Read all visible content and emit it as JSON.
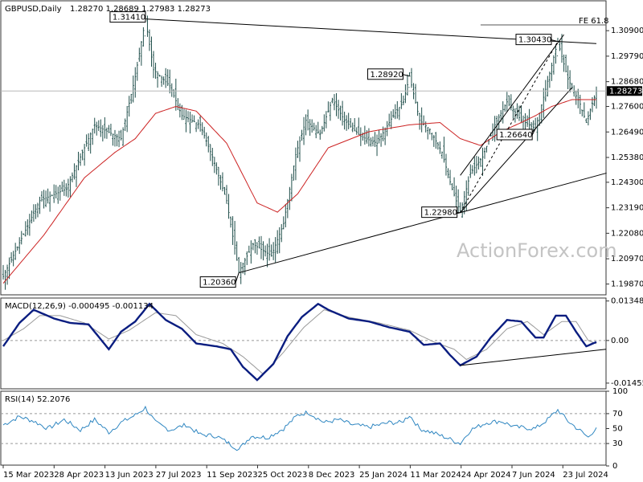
{
  "chart_data": [
    {
      "type": "candlestick",
      "title": "GBPUSD,Daily",
      "ohlc_readout": "1.28270 1.28689 1.27983 1.28273",
      "last_price": "1.28273",
      "ylim": [
        1.194,
        1.322
      ],
      "y_ticks": [
        "1.30900",
        "1.29790",
        "1.28680",
        "1.27600",
        "1.26490",
        "1.25380",
        "1.24300",
        "1.23190",
        "1.22080",
        "1.20970",
        "1.19870"
      ],
      "x_ticks": [
        "15 Mar 2023",
        "28 Apr 2023",
        "13 Jun 2023",
        "27 Jul 2023",
        "11 Sep 2023",
        "25 Oct 2023",
        "8 Dec 2023",
        "25 Jan 2024",
        "11 Mar 2024",
        "24 Apr 2024",
        "7 Jun 2024",
        "23 Jul 2024"
      ],
      "price_keypoints": [
        [
          0,
          1.202
        ],
        [
          18,
          1.235
        ],
        [
          31,
          1.24
        ],
        [
          45,
          1.268
        ],
        [
          58,
          1.262
        ],
        [
          65,
          1.289
        ],
        [
          70,
          1.3141
        ],
        [
          74,
          1.292
        ],
        [
          82,
          1.285
        ],
        [
          88,
          1.272
        ],
        [
          97,
          1.268
        ],
        [
          103,
          1.254
        ],
        [
          110,
          1.235
        ],
        [
          116,
          1.204
        ],
        [
          123,
          1.216
        ],
        [
          132,
          1.211
        ],
        [
          138,
          1.225
        ],
        [
          144,
          1.255
        ],
        [
          149,
          1.27
        ],
        [
          156,
          1.264
        ],
        [
          162,
          1.279
        ],
        [
          168,
          1.27
        ],
        [
          176,
          1.263
        ],
        [
          184,
          1.26
        ],
        [
          192,
          1.272
        ],
        [
          197,
          1.278
        ],
        [
          200,
          1.2892
        ],
        [
          205,
          1.27
        ],
        [
          210,
          1.266
        ],
        [
          216,
          1.256
        ],
        [
          221,
          1.24
        ],
        [
          225,
          1.2298
        ],
        [
          230,
          1.247
        ],
        [
          236,
          1.254
        ],
        [
          242,
          1.268
        ],
        [
          248,
          1.278
        ],
        [
          255,
          1.27
        ],
        [
          262,
          1.2664
        ],
        [
          266,
          1.28
        ],
        [
          273,
          1.3043
        ],
        [
          278,
          1.288
        ],
        [
          284,
          1.277
        ],
        [
          287,
          1.269
        ],
        [
          292,
          1.2827
        ]
      ],
      "moving_average_keypoints": [
        [
          0,
          1.199
        ],
        [
          20,
          1.22
        ],
        [
          40,
          1.245
        ],
        [
          55,
          1.256
        ],
        [
          65,
          1.262
        ],
        [
          75,
          1.273
        ],
        [
          85,
          1.276
        ],
        [
          95,
          1.274
        ],
        [
          110,
          1.26
        ],
        [
          125,
          1.234
        ],
        [
          135,
          1.23
        ],
        [
          145,
          1.238
        ],
        [
          160,
          1.258
        ],
        [
          180,
          1.265
        ],
        [
          200,
          1.268
        ],
        [
          215,
          1.269
        ],
        [
          225,
          1.262
        ],
        [
          235,
          1.259
        ],
        [
          245,
          1.265
        ],
        [
          255,
          1.269
        ],
        [
          262,
          1.272
        ],
        [
          270,
          1.276
        ],
        [
          280,
          1.279
        ],
        [
          292,
          1.279
        ]
      ],
      "annotations": [
        {
          "label": "1.31410",
          "bar": 70,
          "price": 1.3141
        },
        {
          "label": "1.20360",
          "bar": 116,
          "price": 1.2036
        },
        {
          "label": "1.28920",
          "bar": 200,
          "price": 1.2892
        },
        {
          "label": "1.22980",
          "bar": 225,
          "price": 1.2298
        },
        {
          "label": "1.30430",
          "bar": 273,
          "price": 1.3043
        },
        {
          "label": "1.26640",
          "bar": 262,
          "price": 1.2664
        }
      ],
      "fib_label": "FE 61.8",
      "fib_price": 1.3115
    },
    {
      "type": "line",
      "title": "MACD(12,26,9) -0.000495 -0.001134",
      "ylim": [
        -0.0165,
        0.0145
      ],
      "y_ticks": [
        "0.013489",
        "0.00",
        "-0.014554"
      ],
      "macd_keypoints": [
        [
          0,
          -0.002
        ],
        [
          8,
          0.006
        ],
        [
          15,
          0.0105
        ],
        [
          25,
          0.0075
        ],
        [
          33,
          0.006
        ],
        [
          42,
          0.0055
        ],
        [
          52,
          -0.003
        ],
        [
          58,
          0.003
        ],
        [
          65,
          0.0065
        ],
        [
          72,
          0.0125
        ],
        [
          80,
          0.007
        ],
        [
          88,
          0.004
        ],
        [
          95,
          -0.001
        ],
        [
          105,
          -0.002
        ],
        [
          112,
          -0.003
        ],
        [
          118,
          -0.009
        ],
        [
          125,
          -0.0135
        ],
        [
          133,
          -0.008
        ],
        [
          140,
          0.0015
        ],
        [
          147,
          0.008
        ],
        [
          155,
          0.0125
        ],
        [
          160,
          0.0105
        ],
        [
          170,
          0.0075
        ],
        [
          180,
          0.0065
        ],
        [
          190,
          0.0045
        ],
        [
          200,
          0.003
        ],
        [
          207,
          -0.0015
        ],
        [
          215,
          -0.001
        ],
        [
          220,
          -0.005
        ],
        [
          225,
          -0.0085
        ],
        [
          233,
          -0.0055
        ],
        [
          240,
          0.001
        ],
        [
          248,
          0.007
        ],
        [
          255,
          0.0065
        ],
        [
          262,
          0.001
        ],
        [
          266,
          0.001
        ],
        [
          272,
          0.0085
        ],
        [
          277,
          0.0085
        ],
        [
          282,
          0.003
        ],
        [
          287,
          -0.002
        ],
        [
          292,
          -0.0005
        ]
      ],
      "signal_keypoints": [
        [
          0,
          0.0
        ],
        [
          10,
          0.004
        ],
        [
          18,
          0.0085
        ],
        [
          28,
          0.0085
        ],
        [
          40,
          0.006
        ],
        [
          52,
          0.0005
        ],
        [
          62,
          0.0035
        ],
        [
          75,
          0.0095
        ],
        [
          85,
          0.0085
        ],
        [
          95,
          0.002
        ],
        [
          108,
          -0.001
        ],
        [
          118,
          -0.0055
        ],
        [
          128,
          -0.0115
        ],
        [
          138,
          -0.004
        ],
        [
          148,
          0.0045
        ],
        [
          158,
          0.0105
        ],
        [
          170,
          0.008
        ],
        [
          185,
          0.006
        ],
        [
          200,
          0.0035
        ],
        [
          212,
          -0.0005
        ],
        [
          222,
          -0.003
        ],
        [
          228,
          -0.0065
        ],
        [
          238,
          -0.003
        ],
        [
          248,
          0.004
        ],
        [
          258,
          0.0065
        ],
        [
          266,
          0.002
        ],
        [
          275,
          0.0065
        ],
        [
          282,
          0.0065
        ],
        [
          288,
          0.0
        ],
        [
          292,
          -0.0011
        ]
      ]
    },
    {
      "type": "line",
      "title": "RSI(14) 52.2076",
      "ylim": [
        0,
        100
      ],
      "y_ticks": [
        "100",
        "70",
        "50",
        "30",
        "0"
      ],
      "rsi_keypoints": [
        [
          0,
          55
        ],
        [
          8,
          66
        ],
        [
          15,
          60
        ],
        [
          22,
          50
        ],
        [
          30,
          62
        ],
        [
          38,
          48
        ],
        [
          45,
          62
        ],
        [
          52,
          45
        ],
        [
          58,
          58
        ],
        [
          65,
          68
        ],
        [
          70,
          78
        ],
        [
          75,
          58
        ],
        [
          82,
          48
        ],
        [
          90,
          55
        ],
        [
          97,
          42
        ],
        [
          105,
          40
        ],
        [
          110,
          32
        ],
        [
          116,
          22
        ],
        [
          122,
          40
        ],
        [
          130,
          38
        ],
        [
          138,
          50
        ],
        [
          145,
          68
        ],
        [
          150,
          72
        ],
        [
          158,
          58
        ],
        [
          165,
          62
        ],
        [
          172,
          55
        ],
        [
          180,
          52
        ],
        [
          190,
          58
        ],
        [
          196,
          58
        ],
        [
          200,
          68
        ],
        [
          205,
          50
        ],
        [
          212,
          44
        ],
        [
          218,
          38
        ],
        [
          225,
          30
        ],
        [
          230,
          48
        ],
        [
          238,
          58
        ],
        [
          245,
          60
        ],
        [
          252,
          52
        ],
        [
          262,
          50
        ],
        [
          268,
          62
        ],
        [
          273,
          75
        ],
        [
          278,
          60
        ],
        [
          285,
          45
        ],
        [
          288,
          38
        ],
        [
          292,
          52
        ]
      ]
    }
  ],
  "watermark": "ActionForex.com",
  "colors": {
    "candle": "#1f4e4a",
    "ma": "#cc2222",
    "macd": "#0a1d80",
    "signal": "#9a9a9a",
    "rsi": "#2e86c1",
    "level": "#b8b8b8"
  }
}
